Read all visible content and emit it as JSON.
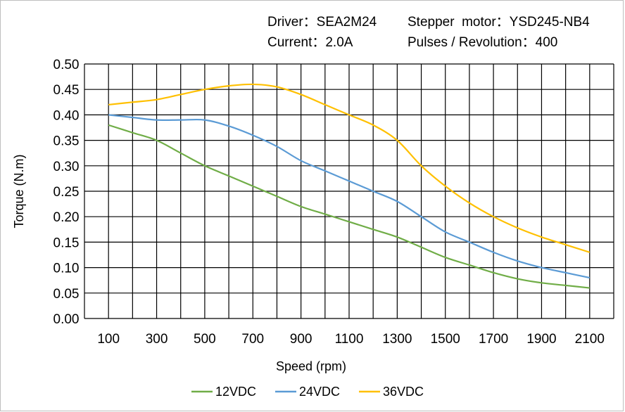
{
  "header": {
    "driver": "Driver：SEA2M24",
    "motor": "Stepper  motor：YSD245-NB4",
    "current": "Current：2.0A",
    "pulses": "Pulses / Revolution：400"
  },
  "chart_data": {
    "type": "line",
    "title": "",
    "xlabel": "Speed  (rpm)",
    "ylabel": "Torque (N.m)",
    "xlim": [
      0,
      2200
    ],
    "ylim": [
      0,
      0.5
    ],
    "grid": true,
    "legend": "bottom",
    "x_ticks": [
      "100",
      "300",
      "500",
      "700",
      "900",
      "1100",
      "1300",
      "1500",
      "1700",
      "1900",
      "2100"
    ],
    "y_ticks": [
      "0.00",
      "0.05",
      "0.10",
      "0.15",
      "0.20",
      "0.25",
      "0.30",
      "0.35",
      "0.40",
      "0.45",
      "0.50"
    ],
    "x": [
      100,
      200,
      300,
      400,
      500,
      600,
      700,
      800,
      900,
      1000,
      1100,
      1200,
      1300,
      1400,
      1500,
      1600,
      1700,
      1800,
      1900,
      2000,
      2100
    ],
    "series": [
      {
        "name": "12VDC",
        "color": "#70ad47",
        "values": [
          0.38,
          0.365,
          0.35,
          0.325,
          0.3,
          0.28,
          0.26,
          0.24,
          0.22,
          0.205,
          0.19,
          0.175,
          0.16,
          0.14,
          0.12,
          0.105,
          0.09,
          0.078,
          0.07,
          0.065,
          0.06
        ]
      },
      {
        "name": "24VDC",
        "color": "#5b9bd5",
        "values": [
          0.4,
          0.395,
          0.39,
          0.39,
          0.39,
          0.378,
          0.36,
          0.338,
          0.31,
          0.29,
          0.27,
          0.25,
          0.23,
          0.2,
          0.17,
          0.15,
          0.13,
          0.113,
          0.1,
          0.09,
          0.08
        ]
      },
      {
        "name": "36VDC",
        "color": "#ffc000",
        "values": [
          0.42,
          0.425,
          0.43,
          0.44,
          0.45,
          0.457,
          0.46,
          0.455,
          0.44,
          0.42,
          0.4,
          0.38,
          0.35,
          0.3,
          0.26,
          0.227,
          0.2,
          0.178,
          0.16,
          0.145,
          0.13
        ]
      }
    ]
  }
}
